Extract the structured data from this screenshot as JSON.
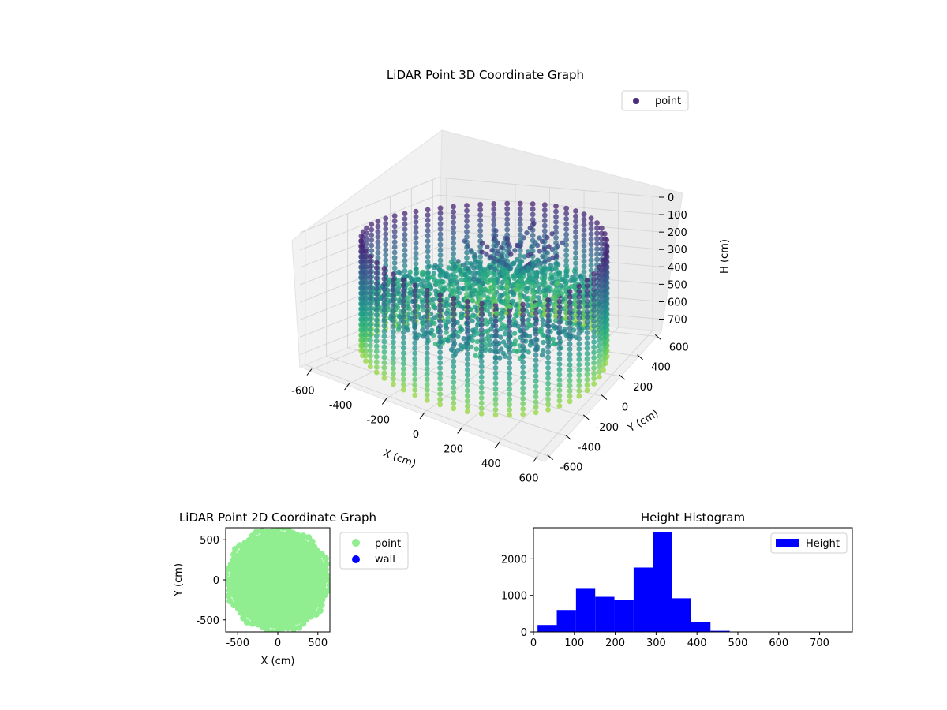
{
  "chart_data": [
    {
      "type": "scatter",
      "subtype": "3d",
      "title": "LiDAR Point 3D Coordinate Graph",
      "xlabel": "X (cm)",
      "ylabel": "Y (cm)",
      "zlabel": "H (cm)",
      "x_ticks": [
        -600,
        -400,
        -200,
        0,
        200,
        400,
        600
      ],
      "y_ticks": [
        -600,
        -400,
        -200,
        0,
        200,
        400,
        600
      ],
      "z_ticks": [
        0,
        100,
        200,
        300,
        400,
        500,
        600,
        700
      ],
      "xlim": [
        -650,
        650
      ],
      "ylim": [
        -650,
        650
      ],
      "zlim": [
        770,
        0
      ],
      "z_inverted": true,
      "colormap": "viridis",
      "legend": {
        "placement": "upper-right",
        "entries": [
          "point"
        ]
      },
      "series": [
        {
          "name": "point",
          "description_values": {
            "wall_radius": 600,
            "wall_top": 80,
            "wall_bottom": 720,
            "wall_stripes": 56,
            "floor_height": 400
          }
        }
      ],
      "grid": true
    },
    {
      "type": "scatter",
      "title": "LiDAR Point 2D Coordinate Graph",
      "xlabel": "X (cm)",
      "ylabel": "Y (cm)",
      "x_ticks": [
        -500,
        0,
        500
      ],
      "y_ticks": [
        -500,
        0,
        500
      ],
      "xlim": [
        -650,
        650
      ],
      "ylim": [
        -650,
        650
      ],
      "series": [
        {
          "name": "point",
          "color": "#90ee90",
          "shape": "disk",
          "radius": 610
        },
        {
          "name": "wall",
          "color": "#0000ff",
          "values": []
        }
      ],
      "legend": {
        "placement": "outside-upper-right",
        "entries": [
          "point",
          "wall"
        ]
      }
    },
    {
      "type": "bar",
      "subtype": "histogram",
      "title": "Height Histogram",
      "xlabel": "",
      "ylabel": "",
      "x_ticks": [
        0,
        100,
        200,
        300,
        400,
        500,
        600,
        700
      ],
      "y_ticks": [
        0,
        1000,
        2000
      ],
      "xlim": [
        0,
        780
      ],
      "ylim": [
        0,
        2850
      ],
      "bin_edges": [
        10,
        57,
        104,
        151,
        198,
        245,
        292,
        339,
        386,
        433,
        480,
        527,
        574,
        621,
        668,
        715,
        762
      ],
      "series": [
        {
          "name": "Height",
          "color": "#0000ff",
          "values": [
            190,
            600,
            1200,
            960,
            880,
            1760,
            2730,
            920,
            270,
            30,
            5,
            3,
            2,
            2,
            1,
            1
          ]
        }
      ],
      "legend": {
        "placement": "upper-right",
        "entries": [
          "Height"
        ]
      }
    }
  ]
}
